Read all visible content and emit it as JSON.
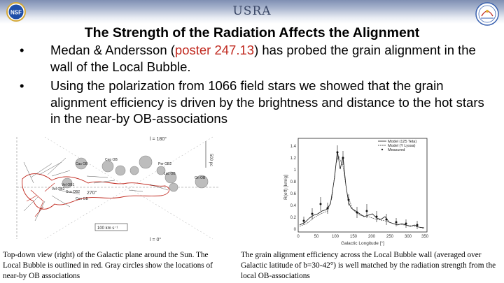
{
  "banner": {
    "title": "USRA"
  },
  "logos": {
    "left_text": "NSF"
  },
  "slide": {
    "title": "The Strength of the Radiation Affects the Alignment",
    "bullet1_pre": "Medan & Andersson (",
    "bullet1_red": "poster 247.13",
    "bullet1_post": ") has probed the grain alignment in the wall of the Local Bubble.",
    "bullet2": "Using the polarization from 1066 field stars we showed that the grain alignment efficiency is driven by the brightness and distance to the hot stars in the near-by OB-associations",
    "bullet_symbol": "•"
  },
  "figure_left": {
    "top_label": "l = 180°",
    "bottom_label": "l = 0°",
    "left_label": "270°",
    "scale_label": "500 pc",
    "bar_label": "100 km s⁻¹",
    "circle_labels": [
      "Cas OB",
      "Per OB2",
      "Cep OB",
      "Lac OB",
      "Ori OB",
      "Vel OB1",
      "Vel OB2",
      "Sco OB2",
      "Cen OB"
    ]
  },
  "figure_right": {
    "ylabel": "R(eff) [km/g]",
    "xlabel": "Galactic Longitude [°]",
    "legend": [
      "Model (125 Teta)",
      "Model (Y Lyssa)",
      "Measured"
    ],
    "yticks": [
      "1.4",
      "1.2",
      "1",
      "0.8",
      "0.6",
      "0.4",
      "0.2",
      "0"
    ],
    "xticks": [
      "0",
      "50",
      "100",
      "150",
      "200",
      "250",
      "300",
      "350"
    ]
  },
  "captions": {
    "left": "Top-down view (right) of the Galactic plane around the Sun. The Local Bubble is outlined in red. Gray circles show the locations of near-by OB associations",
    "right": "The grain alignment efficiency across the Local Bubble wall (averaged over Galactic latitude of b=30-42°) is well matched by the radiation strength from the local OB-associations"
  }
}
